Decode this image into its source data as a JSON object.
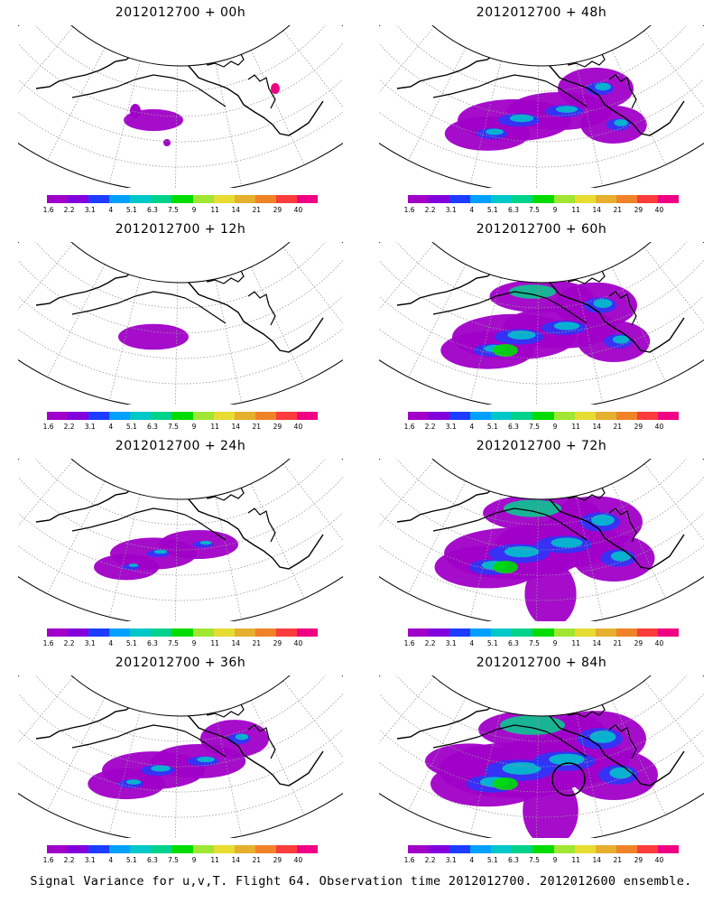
{
  "panels": [
    {
      "title": "2012012700 + 00h",
      "intensity": 0.05
    },
    {
      "title": "2012012700 + 48h",
      "intensity": 0.55
    },
    {
      "title": "2012012700 + 12h",
      "intensity": 0.15
    },
    {
      "title": "2012012700 + 60h",
      "intensity": 0.65
    },
    {
      "title": "2012012700 + 24h",
      "intensity": 0.3
    },
    {
      "title": "2012012700 + 72h",
      "intensity": 0.8
    },
    {
      "title": "2012012700 + 36h",
      "intensity": 0.45
    },
    {
      "title": "2012012700 + 84h",
      "intensity": 0.9
    }
  ],
  "colorbar": {
    "colors": [
      "#a000c8",
      "#8200dc",
      "#1e3cff",
      "#00a0ff",
      "#00c8c8",
      "#00d28c",
      "#00dc00",
      "#a0e632",
      "#e6dc32",
      "#e6af2d",
      "#f08228",
      "#fa3c3c",
      "#f00082"
    ],
    "labels": [
      "1.6",
      "2.2",
      "3.1",
      "4",
      "5.1",
      "6.3",
      "7.5",
      "9",
      "11",
      "14",
      "21",
      "29",
      "40"
    ]
  },
  "footer": "Signal Variance for u,v,T. Flight 64. Observation time 2012012700. 2012012600 ensemble."
}
